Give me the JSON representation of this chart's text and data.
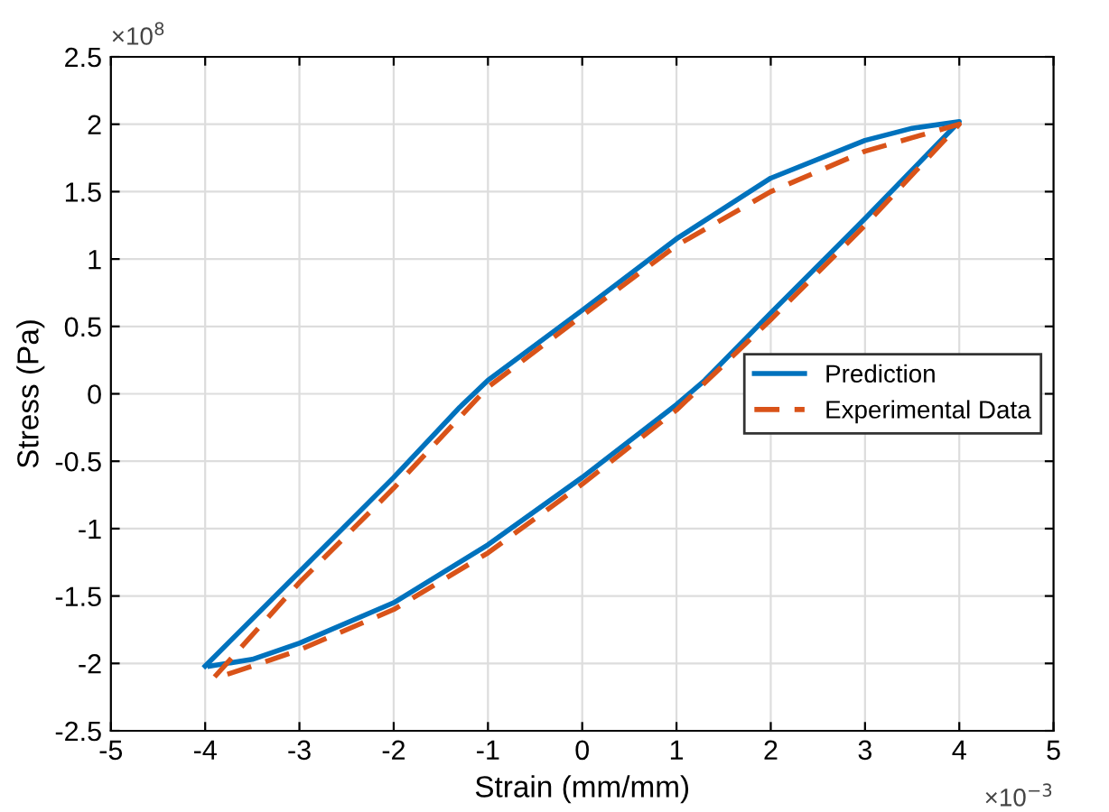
{
  "chart_data": {
    "type": "line",
    "xlabel": "Strain (mm/mm)",
    "ylabel": "Stress (Pa)",
    "annotations": [
      "×10$^{8}$",
      "×10$^{−3}$"
    ],
    "series": [
      {
        "name": "Prediction",
        "color": "#0072bd",
        "line_style": "solid",
        "x": [
          -4,
          -3,
          -2,
          -1.3,
          -1,
          0,
          1,
          2,
          3,
          3.5,
          4,
          3,
          2,
          1.3,
          1,
          0,
          -1,
          -2,
          -3,
          -3.5,
          -3.95
        ],
        "values": [
          -2.02,
          -1.32,
          -0.62,
          -0.1,
          0.1,
          0.62,
          1.15,
          1.6,
          1.88,
          1.97,
          2.02,
          1.3,
          0.6,
          0.1,
          -0.08,
          -0.62,
          -1.12,
          -1.55,
          -1.85,
          -1.97,
          -2.02
        ]
      },
      {
        "name": "Experimental Data",
        "color": "#d95319",
        "line_style": "dashed",
        "x": [
          -3.9,
          -3,
          -2,
          -1,
          0,
          1,
          2,
          3,
          3.5,
          4,
          3,
          2,
          1,
          0,
          -1,
          -2,
          -3,
          -3.5,
          -3.85
        ],
        "values": [
          -2.1,
          -1.4,
          -0.7,
          0.05,
          0.58,
          1.1,
          1.5,
          1.8,
          1.9,
          2.0,
          1.25,
          0.55,
          -0.12,
          -0.67,
          -1.18,
          -1.6,
          -1.9,
          -2.02,
          -2.1
        ]
      }
    ],
    "xlim": [
      -5,
      5
    ],
    "xticks": [
      -5,
      -4,
      -3,
      -2,
      -1,
      0,
      1,
      2,
      3,
      4,
      5
    ],
    "ylim": [
      -2.5,
      2.5
    ],
    "yticks": [
      -2.5,
      -2,
      -1.5,
      -1,
      -0.5,
      0,
      0.5,
      1,
      1.5,
      2,
      2.5
    ],
    "grid": true,
    "legend": "center right"
  }
}
